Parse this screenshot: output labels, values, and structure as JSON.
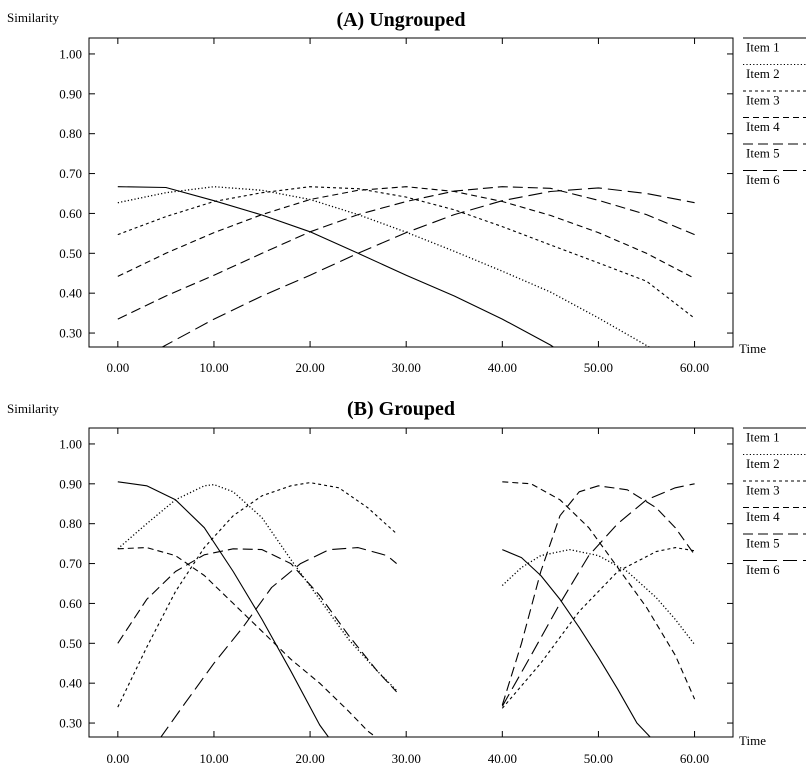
{
  "chart_data": [
    {
      "type": "line",
      "title": "(A) Ungrouped",
      "ylabel": "Similarity",
      "xlabel": "Time",
      "xlim": [
        -3,
        64
      ],
      "ylim": [
        0.265,
        1.04
      ],
      "xticks": [
        "0.00",
        "10.00",
        "20.00",
        "30.00",
        "40.00",
        "50.00",
        "60.00"
      ],
      "yticks": [
        "0.30",
        "0.40",
        "0.50",
        "0.60",
        "0.70",
        "0.80",
        "0.90",
        "1.00"
      ],
      "legend": [
        "Item 1",
        "Item 2",
        "Item 3",
        "Item 4",
        "Item 5",
        "Item 6"
      ],
      "legend_position": "right",
      "series": [
        {
          "name": "Item 1",
          "style": "solid",
          "segments": [
            [
              [
                0,
                0.667
              ],
              [
                5,
                0.665
              ],
              [
                10,
                0.632
              ],
              [
                15,
                0.596
              ],
              [
                20,
                0.554
              ],
              [
                25,
                0.5
              ],
              [
                30,
                0.445
              ],
              [
                35,
                0.393
              ],
              [
                40,
                0.335
              ],
              [
                45,
                0.27
              ],
              [
                45.5,
                0.262
              ]
            ]
          ]
        },
        {
          "name": "Item 2",
          "style": "dotted",
          "segments": [
            [
              [
                0,
                0.627
              ],
              [
                5,
                0.652
              ],
              [
                10,
                0.667
              ],
              [
                15,
                0.658
              ],
              [
                20,
                0.635
              ],
              [
                25,
                0.597
              ],
              [
                30,
                0.553
              ],
              [
                35,
                0.505
              ],
              [
                40,
                0.455
              ],
              [
                45,
                0.403
              ],
              [
                50,
                0.338
              ],
              [
                55.5,
                0.262
              ]
            ]
          ]
        },
        {
          "name": "Item 3",
          "style": "short-dash",
          "segments": [
            [
              [
                0,
                0.547
              ],
              [
                5,
                0.592
              ],
              [
                10,
                0.63
              ],
              [
                15,
                0.652
              ],
              [
                20,
                0.667
              ],
              [
                25,
                0.662
              ],
              [
                30,
                0.641
              ],
              [
                35,
                0.609
              ],
              [
                40,
                0.567
              ],
              [
                45,
                0.521
              ],
              [
                50,
                0.476
              ],
              [
                55,
                0.43
              ],
              [
                60,
                0.337
              ]
            ]
          ]
        },
        {
          "name": "Item 4",
          "style": "dash",
          "segments": [
            [
              [
                0,
                0.442
              ],
              [
                5,
                0.5
              ],
              [
                10,
                0.552
              ],
              [
                15,
                0.597
              ],
              [
                20,
                0.635
              ],
              [
                25,
                0.658
              ],
              [
                30,
                0.667
              ],
              [
                35,
                0.655
              ],
              [
                40,
                0.63
              ],
              [
                45,
                0.595
              ],
              [
                50,
                0.552
              ],
              [
                55,
                0.5
              ],
              [
                60,
                0.437
              ]
            ]
          ]
        },
        {
          "name": "Item 5",
          "style": "long-dash",
          "segments": [
            [
              [
                0,
                0.335
              ],
              [
                5,
                0.393
              ],
              [
                10,
                0.445
              ],
              [
                15,
                0.5
              ],
              [
                20,
                0.554
              ],
              [
                25,
                0.597
              ],
              [
                30,
                0.63
              ],
              [
                35,
                0.656
              ],
              [
                40,
                0.667
              ],
              [
                45,
                0.663
              ],
              [
                50,
                0.633
              ],
              [
                55,
                0.597
              ],
              [
                60,
                0.547
              ]
            ]
          ]
        },
        {
          "name": "Item 6",
          "style": "longer-dash",
          "segments": [
            [
              [
                4.4,
                0.262
              ],
              [
                10,
                0.335
              ],
              [
                15,
                0.393
              ],
              [
                20,
                0.445
              ],
              [
                25,
                0.5
              ],
              [
                30,
                0.552
              ],
              [
                35,
                0.597
              ],
              [
                40,
                0.632
              ],
              [
                45,
                0.655
              ],
              [
                50,
                0.664
              ],
              [
                55,
                0.65
              ],
              [
                60,
                0.627
              ]
            ]
          ]
        }
      ]
    },
    {
      "type": "line",
      "title": "(B) Grouped",
      "ylabel": "Similarity",
      "xlabel": "Time",
      "xlim": [
        -3,
        64
      ],
      "ylim": [
        0.265,
        1.04
      ],
      "xticks": [
        "0.00",
        "10.00",
        "20.00",
        "30.00",
        "40.00",
        "50.00",
        "60.00"
      ],
      "yticks": [
        "0.30",
        "0.40",
        "0.50",
        "0.60",
        "0.70",
        "0.80",
        "0.90",
        "1.00"
      ],
      "legend": [
        "Item 1",
        "Item 2",
        "Item 3",
        "Item 4",
        "Item 5",
        "Item 6"
      ],
      "legend_position": "right",
      "series": [
        {
          "name": "Item 1",
          "style": "solid",
          "segments": [
            [
              [
                0,
                0.905
              ],
              [
                3,
                0.895
              ],
              [
                6,
                0.86
              ],
              [
                9,
                0.79
              ],
              [
                12,
                0.68
              ],
              [
                15,
                0.56
              ],
              [
                18,
                0.43
              ],
              [
                21,
                0.295
              ],
              [
                22,
                0.262
              ]
            ],
            [
              [
                40,
                0.735
              ],
              [
                42,
                0.715
              ],
              [
                44,
                0.67
              ],
              [
                46,
                0.61
              ],
              [
                48,
                0.54
              ],
              [
                50,
                0.465
              ],
              [
                52,
                0.385
              ],
              [
                54,
                0.3
              ],
              [
                55.5,
                0.262
              ]
            ]
          ]
        },
        {
          "name": "Item 2",
          "style": "dotted",
          "segments": [
            [
              [
                0,
                0.737
              ],
              [
                3,
                0.8
              ],
              [
                6,
                0.86
              ],
              [
                9,
                0.895
              ],
              [
                10,
                0.898
              ],
              [
                12,
                0.88
              ],
              [
                15,
                0.815
              ],
              [
                18,
                0.71
              ],
              [
                21,
                0.61
              ],
              [
                24,
                0.51
              ],
              [
                27,
                0.43
              ],
              [
                29,
                0.382
              ]
            ],
            [
              [
                40,
                0.645
              ],
              [
                42,
                0.69
              ],
              [
                44,
                0.72
              ],
              [
                47,
                0.735
              ],
              [
                50,
                0.72
              ],
              [
                53,
                0.68
              ],
              [
                56,
                0.615
              ],
              [
                58,
                0.56
              ],
              [
                60,
                0.497
              ]
            ]
          ]
        },
        {
          "name": "Item 3",
          "style": "short-dash",
          "segments": [
            [
              [
                0,
                0.34
              ],
              [
                3,
                0.49
              ],
              [
                6,
                0.63
              ],
              [
                9,
                0.74
              ],
              [
                12,
                0.82
              ],
              [
                15,
                0.87
              ],
              [
                18,
                0.895
              ],
              [
                20,
                0.903
              ],
              [
                23,
                0.89
              ],
              [
                26,
                0.84
              ],
              [
                29,
                0.775
              ]
            ],
            [
              [
                40,
                0.337
              ],
              [
                44,
                0.45
              ],
              [
                48,
                0.58
              ],
              [
                52,
                0.68
              ],
              [
                56,
                0.73
              ],
              [
                58,
                0.74
              ],
              [
                60,
                0.732
              ]
            ]
          ]
        },
        {
          "name": "Item 4",
          "style": "dash",
          "segments": [
            [
              [
                0,
                0.737
              ],
              [
                3,
                0.74
              ],
              [
                6,
                0.72
              ],
              [
                9,
                0.67
              ],
              [
                12,
                0.6
              ],
              [
                15,
                0.53
              ],
              [
                18,
                0.46
              ],
              [
                21,
                0.4
              ],
              [
                24,
                0.33
              ],
              [
                26,
                0.28
              ],
              [
                27,
                0.262
              ]
            ],
            [
              [
                40,
                0.905
              ],
              [
                43,
                0.9
              ],
              [
                46,
                0.86
              ],
              [
                49,
                0.79
              ],
              [
                52,
                0.69
              ],
              [
                55,
                0.59
              ],
              [
                58,
                0.47
              ],
              [
                60,
                0.36
              ]
            ]
          ]
        },
        {
          "name": "Item 5",
          "style": "long-dash",
          "segments": [
            [
              [
                0,
                0.5
              ],
              [
                3,
                0.61
              ],
              [
                6,
                0.68
              ],
              [
                9,
                0.722
              ],
              [
                12,
                0.737
              ],
              [
                15,
                0.735
              ],
              [
                18,
                0.7
              ],
              [
                21,
                0.62
              ],
              [
                24,
                0.52
              ],
              [
                27,
                0.43
              ],
              [
                29,
                0.378
              ]
            ],
            [
              [
                40,
                0.345
              ],
              [
                42,
                0.5
              ],
              [
                44,
                0.68
              ],
              [
                46,
                0.82
              ],
              [
                48,
                0.88
              ],
              [
                50,
                0.895
              ],
              [
                53,
                0.885
              ],
              [
                56,
                0.84
              ],
              [
                58,
                0.79
              ],
              [
                60,
                0.722
              ]
            ]
          ]
        },
        {
          "name": "Item 6",
          "style": "longer-dash",
          "segments": [
            [
              [
                4.4,
                0.262
              ],
              [
                7,
                0.35
              ],
              [
                10,
                0.45
              ],
              [
                13,
                0.54
              ],
              [
                16,
                0.64
              ],
              [
                19,
                0.7
              ],
              [
                22,
                0.735
              ],
              [
                25,
                0.74
              ],
              [
                28,
                0.72
              ],
              [
                29,
                0.7
              ]
            ],
            [
              [
                40,
                0.342
              ],
              [
                43,
                0.47
              ],
              [
                46,
                0.6
              ],
              [
                49,
                0.72
              ],
              [
                52,
                0.8
              ],
              [
                55,
                0.86
              ],
              [
                58,
                0.89
              ],
              [
                60,
                0.9
              ]
            ]
          ]
        }
      ]
    }
  ]
}
